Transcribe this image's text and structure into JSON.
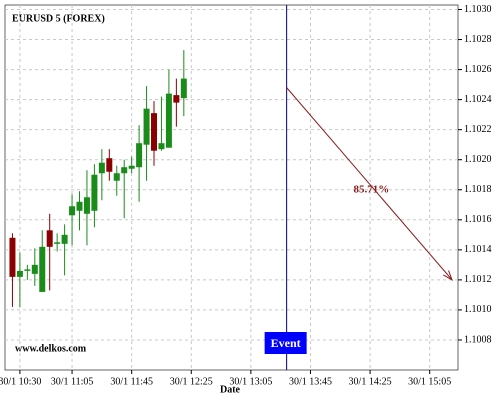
{
  "chart_data": {
    "type": "candlestick",
    "title": "EURUSD 5 (FOREX)",
    "watermark": "www.delkos.com",
    "x_label": "Date",
    "x": [
      "30/1 10:25",
      "30/1 10:30",
      "30/1 10:35",
      "30/1 10:40",
      "30/1 10:45",
      "30/1 10:50",
      "30/1 10:55",
      "30/1 11:00",
      "30/1 11:05",
      "30/1 11:10",
      "30/1 11:15",
      "30/1 11:20",
      "30/1 11:25",
      "30/1 11:30",
      "30/1 11:35",
      "30/1 11:40",
      "30/1 11:45",
      "30/1 11:50",
      "30/1 11:55",
      "30/1 12:00",
      "30/1 12:05",
      "30/1 12:10",
      "30/1 12:15",
      "30/1 12:20"
    ],
    "open": [
      1.10148,
      1.10122,
      1.10126,
      1.10124,
      1.10112,
      1.10153,
      1.10144,
      1.10144,
      1.10163,
      1.10166,
      1.10164,
      1.10166,
      1.10191,
      1.10201,
      1.10186,
      1.10191,
      1.10194,
      1.10195,
      1.1021,
      1.10231,
      1.10207,
      1.10208,
      1.10243,
      1.10241
    ],
    "high": [
      1.10151,
      1.10138,
      1.1013,
      1.10141,
      1.10153,
      1.10164,
      1.10151,
      1.10157,
      1.10177,
      1.10179,
      1.10193,
      1.10197,
      1.10207,
      1.10207,
      1.10196,
      1.102,
      1.10202,
      1.10223,
      1.10249,
      1.10239,
      1.10242,
      1.1026,
      1.10254,
      1.10273
    ],
    "low": [
      1.10102,
      1.10102,
      1.1012,
      1.10116,
      1.10112,
      1.10113,
      1.10139,
      1.10123,
      1.10143,
      1.10153,
      1.10143,
      1.10155,
      1.10173,
      1.10186,
      1.10176,
      1.10161,
      1.10191,
      1.10172,
      1.10186,
      1.10196,
      1.10206,
      1.10208,
      1.10222,
      1.10229
    ],
    "close": [
      1.10122,
      1.10126,
      1.10127,
      1.1013,
      1.10142,
      1.10142,
      1.10145,
      1.1015,
      1.10169,
      1.10172,
      1.10175,
      1.1019,
      1.10198,
      1.10192,
      1.10191,
      1.10195,
      1.10196,
      1.10211,
      1.10234,
      1.10206,
      1.10211,
      1.10244,
      1.10238,
      1.10254
    ],
    "up_color": "#1a8c1a",
    "down_color": "#8b0000",
    "xlim": [
      "30/1 10:20",
      "30/1 15:24"
    ],
    "xticks": [
      "30/1 10:30",
      "30/1 11:05",
      "30/1 11:45",
      "30/1 12:25",
      "30/1 13:05",
      "30/1 13:45",
      "30/1 14:25",
      "30/1 15:05"
    ],
    "ylim": [
      1.1006,
      1.10303
    ],
    "yticks": [
      1.1008,
      {
        "value": 1.101,
        "label": "1.1010"
      },
      1.1012,
      1.1014,
      1.1016,
      1.1018,
      {
        "value": 1.102,
        "label": "1.1020"
      },
      1.1022,
      1.1024,
      1.1026,
      1.1028,
      {
        "value": 1.103,
        "label": "1.1030"
      }
    ],
    "grid": true,
    "event": {
      "label": "Event",
      "x": "30/1 13:29",
      "color": "#000080",
      "box_color": "#0000ff"
    },
    "projection": {
      "label": "85.71%",
      "color": "#8b1a1a",
      "start": {
        "x": "30/1 13:29",
        "y": 1.10248
      },
      "end": {
        "x": "30/1 15:20",
        "y": 1.1012
      }
    }
  }
}
